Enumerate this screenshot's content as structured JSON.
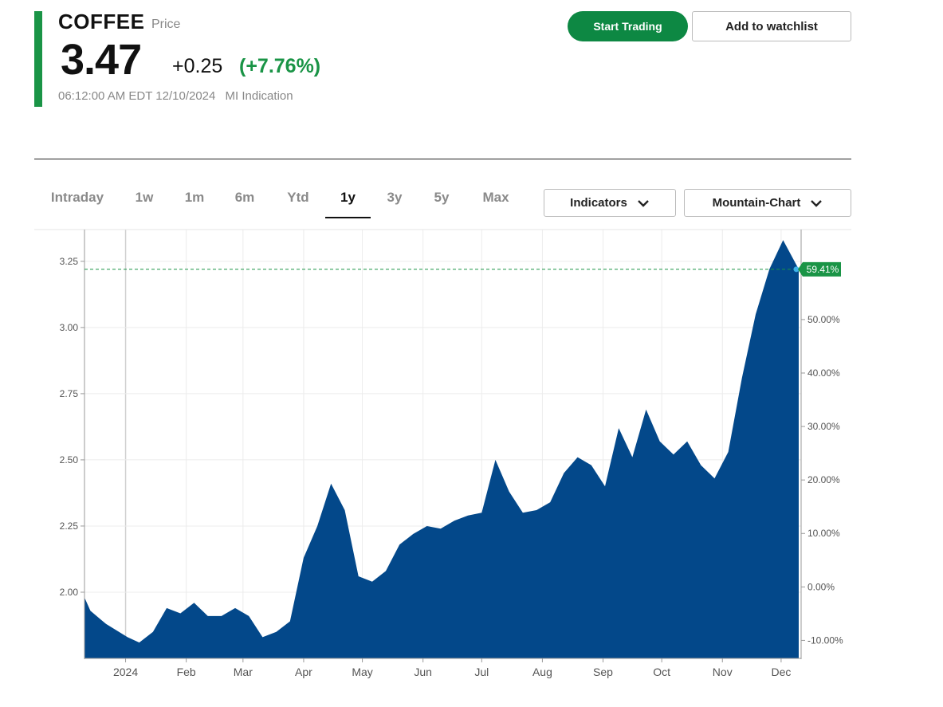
{
  "header": {
    "symbol": "COFFEE",
    "price_label": "Price",
    "price": "3.47",
    "change": "+0.25",
    "change_pct": "(+7.76%)",
    "timestamp": "06:12:00 AM EDT 12/10/2024",
    "source": "MI Indication"
  },
  "actions": {
    "start_trading": "Start Trading",
    "watchlist": "Add to watchlist"
  },
  "range_tabs": [
    {
      "label": "Intraday"
    },
    {
      "label": "1w"
    },
    {
      "label": "1m"
    },
    {
      "label": "6m"
    },
    {
      "label": "Ytd"
    },
    {
      "label": "1y",
      "active": true
    },
    {
      "label": "3y"
    },
    {
      "label": "5y"
    },
    {
      "label": "Max"
    }
  ],
  "dropdowns": {
    "indicators": "Indicators",
    "chart_type": "Mountain-Chart"
  },
  "colors": {
    "accent": "#1a9446",
    "up": "#1a9446",
    "area": "#03488a",
    "button": "#0d8843"
  },
  "icons": [
    "chevron-down-icon"
  ],
  "chart_data": {
    "type": "area",
    "title": "",
    "xlabel": "",
    "ylabel": "",
    "x_ticks": [
      "2024",
      "Feb",
      "Mar",
      "Apr",
      "May",
      "Jun",
      "Jul",
      "Aug",
      "Sep",
      "Oct",
      "Nov",
      "Dec"
    ],
    "y_ticks": [
      "2.00",
      "2.25",
      "2.50",
      "2.75",
      "3.00",
      "3.25"
    ],
    "y2_ticks": [
      "-10.00%",
      "0.00%",
      "10.00%",
      "20.00%",
      "30.00%",
      "40.00%",
      "50.00%"
    ],
    "ylim": [
      1.75,
      3.37
    ],
    "y2_reference": 2.02,
    "current_label": "59.41%",
    "current_value": 3.22,
    "grid": true,
    "series": [
      {
        "x": [
          "2023-12-11",
          "2023-12-14",
          "2023-12-22",
          "2024-01-02",
          "2024-01-08",
          "2024-01-15",
          "2024-01-22",
          "2024-01-29",
          "2024-02-05",
          "2024-02-12",
          "2024-02-19",
          "2024-02-26",
          "2024-03-04",
          "2024-03-11",
          "2024-03-18",
          "2024-03-25",
          "2024-04-01",
          "2024-04-08",
          "2024-04-15",
          "2024-04-22",
          "2024-04-29",
          "2024-05-06",
          "2024-05-13",
          "2024-05-20",
          "2024-05-27",
          "2024-06-03",
          "2024-06-10",
          "2024-06-17",
          "2024-06-24",
          "2024-07-01",
          "2024-07-08",
          "2024-07-15",
          "2024-07-22",
          "2024-07-29",
          "2024-08-05",
          "2024-08-12",
          "2024-08-19",
          "2024-08-26",
          "2024-09-02",
          "2024-09-09",
          "2024-09-16",
          "2024-09-23",
          "2024-09-30",
          "2024-10-07",
          "2024-10-14",
          "2024-10-21",
          "2024-10-28",
          "2024-11-04",
          "2024-11-11",
          "2024-11-18",
          "2024-11-25",
          "2024-12-02",
          "2024-12-10"
        ],
        "values": [
          1.98,
          1.93,
          1.88,
          1.83,
          1.81,
          1.85,
          1.94,
          1.92,
          1.96,
          1.91,
          1.91,
          1.94,
          1.91,
          1.83,
          1.85,
          1.89,
          2.13,
          2.25,
          2.41,
          2.31,
          2.06,
          2.04,
          2.08,
          2.18,
          2.22,
          2.25,
          2.24,
          2.27,
          2.29,
          2.3,
          2.5,
          2.38,
          2.3,
          2.31,
          2.34,
          2.45,
          2.51,
          2.48,
          2.4,
          2.62,
          2.51,
          2.69,
          2.57,
          2.52,
          2.57,
          2.48,
          2.43,
          2.53,
          2.81,
          3.05,
          3.22,
          3.33,
          3.22
        ]
      }
    ]
  }
}
